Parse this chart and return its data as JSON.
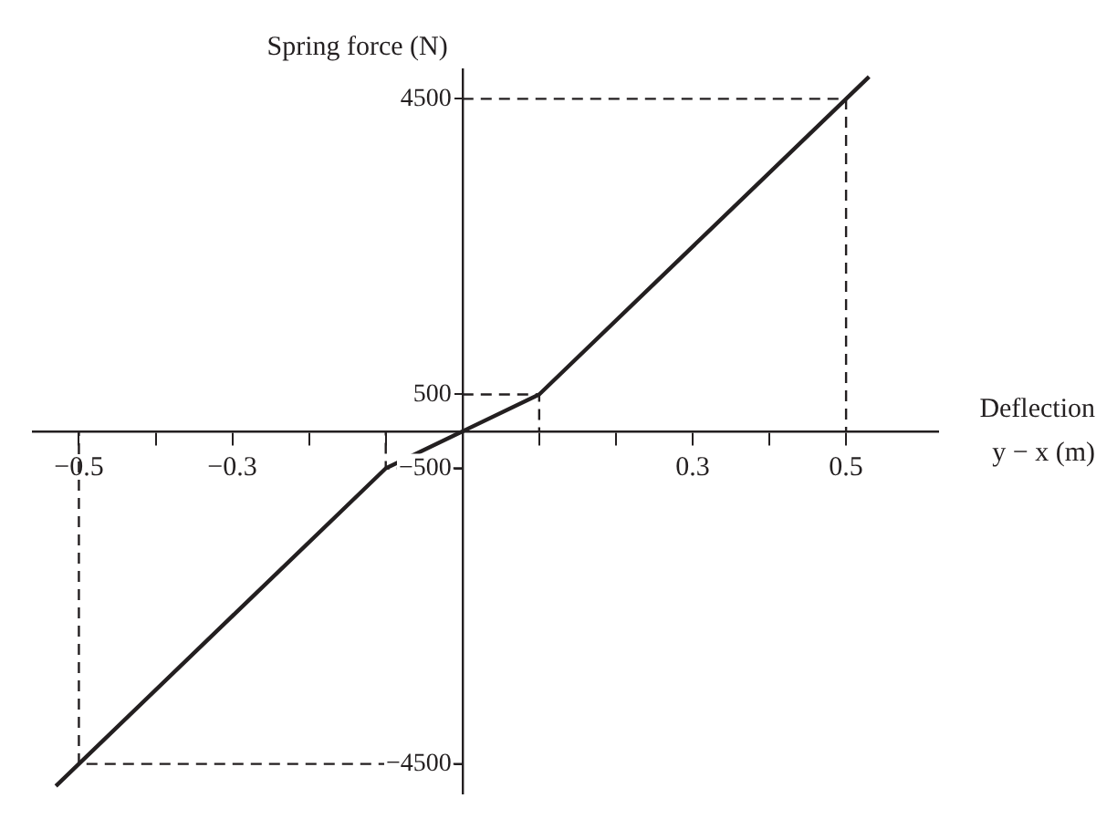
{
  "chart_data": {
    "type": "line",
    "xlabel": "Deflection y − x (m)",
    "ylabel": "Spring force (N)",
    "xlim": [
      -0.56,
      0.62
    ],
    "ylim": [
      -4900,
      4900
    ],
    "xticks": [
      -0.5,
      {
        "value": -0.4,
        "label": null
      },
      -0.3,
      {
        "value": -0.2,
        "label": null
      },
      {
        "value": -0.1,
        "label": null
      },
      {
        "value": 0.1,
        "label": null
      },
      {
        "value": 0.2,
        "label": null
      },
      0.3,
      {
        "value": 0.4,
        "label": null
      },
      0.5
    ],
    "yticks": [
      -4500,
      -500,
      500,
      4500
    ],
    "grid": false,
    "legend": false,
    "marker": "none",
    "series": [
      {
        "color": "#231f20",
        "line_style": "solid",
        "x": [
          -0.53,
          -0.1,
          0,
          0.1,
          0.53
        ],
        "values": [
          -4800,
          -500,
          0,
          500,
          4800
        ]
      },
      {
        "color": "#231f20",
        "line_style": "dashed",
        "x": [
          0,
          0.5,
          0.5
        ],
        "values": [
          4500,
          4500,
          0
        ]
      },
      {
        "color": "#231f20",
        "line_style": "dashed",
        "x": [
          0,
          0.1,
          0.1
        ],
        "values": [
          500,
          500,
          0
        ]
      },
      {
        "color": "#231f20",
        "line_style": "dashed",
        "x": [
          0,
          -0.1,
          -0.1
        ],
        "values": [
          -500,
          -500,
          0
        ]
      },
      {
        "color": "#231f20",
        "line_style": "dashed",
        "x": [
          0,
          -0.5,
          -0.5
        ],
        "values": [
          -4500,
          -4500,
          0
        ]
      }
    ]
  }
}
